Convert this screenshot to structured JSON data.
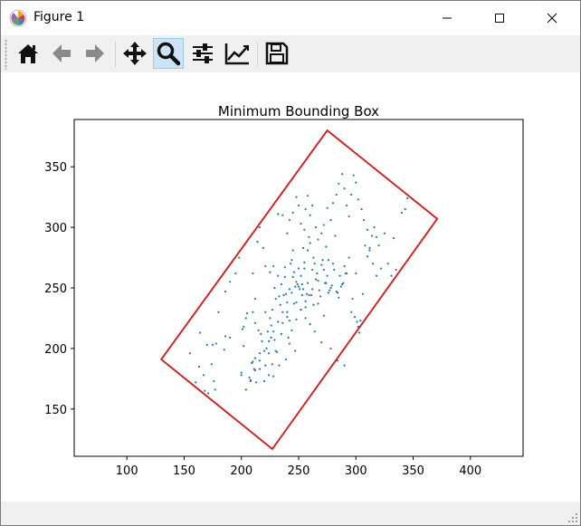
{
  "window": {
    "title": "Figure 1",
    "icon": "matplotlib-logo-icon"
  },
  "window_controls": [
    "minimize-icon",
    "maximize-icon",
    "close-icon"
  ],
  "toolbar": {
    "buttons": [
      {
        "name": "home",
        "icon": "home-icon",
        "active": false
      },
      {
        "name": "back",
        "icon": "arrow-left-icon",
        "active": false
      },
      {
        "name": "forward",
        "icon": "arrow-right-icon",
        "active": false
      },
      {
        "name": "pan",
        "icon": "move-icon",
        "active": false
      },
      {
        "name": "zoom",
        "icon": "zoom-icon",
        "active": true
      },
      {
        "name": "subplots",
        "icon": "sliders-icon",
        "active": false
      },
      {
        "name": "customize",
        "icon": "chart-line-icon",
        "active": false
      },
      {
        "name": "save",
        "icon": "floppy-disk-icon",
        "active": false
      }
    ]
  },
  "colors": {
    "points": "#1f77b4",
    "bounding_box": "#e01010",
    "accent_active": "#cce4f7"
  },
  "chart_data": {
    "type": "scatter",
    "title": "Minimum Bounding Box",
    "xlabel": "",
    "ylabel": "",
    "xlim": [
      54,
      446
    ],
    "ylim": [
      111,
      389
    ],
    "xticks": [
      100,
      150,
      200,
      250,
      300,
      350,
      400
    ],
    "yticks": [
      150,
      200,
      250,
      300,
      350
    ],
    "grid": false,
    "bounding_box": {
      "vertices": [
        [
          130,
          191
        ],
        [
          227,
          117
        ],
        [
          371,
          307
        ],
        [
          275,
          380
        ]
      ],
      "color": "#e01010"
    },
    "points": [
      [
        155,
        196
      ],
      [
        160,
        172
      ],
      [
        163,
        185
      ],
      [
        164,
        213
      ],
      [
        167,
        178
      ],
      [
        168,
        165
      ],
      [
        170,
        203
      ],
      [
        171,
        163
      ],
      [
        174,
        187
      ],
      [
        175,
        203
      ],
      [
        176,
        173
      ],
      [
        177,
        166
      ],
      [
        178,
        204
      ],
      [
        185,
        199
      ],
      [
        186,
        210
      ],
      [
        190,
        209
      ],
      [
        200,
        180
      ],
      [
        200,
        178
      ],
      [
        201,
        216
      ],
      [
        202,
        218
      ],
      [
        202,
        202
      ],
      [
        204,
        225
      ],
      [
        205,
        229
      ],
      [
        207,
        176
      ],
      [
        208,
        173
      ],
      [
        209,
        188
      ],
      [
        210,
        189
      ],
      [
        210,
        230
      ],
      [
        211,
        183
      ],
      [
        212,
        192
      ],
      [
        212,
        221
      ],
      [
        213,
        172
      ],
      [
        215,
        215
      ],
      [
        216,
        196
      ],
      [
        216,
        183
      ],
      [
        217,
        212
      ],
      [
        218,
        206
      ],
      [
        220,
        173
      ],
      [
        221,
        186
      ],
      [
        221,
        230
      ],
      [
        222,
        200
      ],
      [
        223,
        214
      ],
      [
        224,
        196
      ],
      [
        224,
        178
      ],
      [
        225,
        225
      ],
      [
        226,
        219
      ],
      [
        226,
        209
      ],
      [
        227,
        232
      ],
      [
        227,
        187
      ],
      [
        228,
        177
      ],
      [
        229,
        250
      ],
      [
        229,
        207
      ],
      [
        230,
        198
      ],
      [
        230,
        241
      ],
      [
        231,
        197
      ],
      [
        232,
        260
      ],
      [
        233,
        243
      ],
      [
        233,
        186
      ],
      [
        234,
        236
      ],
      [
        235,
        253
      ],
      [
        235,
        212
      ],
      [
        236,
        221
      ],
      [
        237,
        244
      ],
      [
        238,
        259
      ],
      [
        238,
        267
      ],
      [
        239,
        245
      ],
      [
        239,
        191
      ],
      [
        240,
        230
      ],
      [
        240,
        226
      ],
      [
        241,
        209
      ],
      [
        242,
        249
      ],
      [
        242,
        204
      ],
      [
        242,
        223
      ],
      [
        243,
        270
      ],
      [
        244,
        273
      ],
      [
        244,
        215
      ],
      [
        245,
        281
      ],
      [
        245,
        259
      ],
      [
        246,
        263
      ],
      [
        246,
        237
      ],
      [
        247,
        198
      ],
      [
        247,
        251
      ],
      [
        248,
        224
      ],
      [
        248,
        255
      ],
      [
        249,
        253
      ],
      [
        250,
        251
      ],
      [
        250,
        266
      ],
      [
        251,
        249
      ],
      [
        252,
        232
      ],
      [
        252,
        260
      ],
      [
        253,
        253
      ],
      [
        253,
        244
      ],
      [
        254,
        283
      ],
      [
        254,
        249
      ],
      [
        255,
        271
      ],
      [
        255,
        266
      ],
      [
        256,
        239
      ],
      [
        256,
        234
      ],
      [
        257,
        245
      ],
      [
        258,
        281
      ],
      [
        258,
        254
      ],
      [
        259,
        244
      ],
      [
        259,
        292
      ],
      [
        260,
        287
      ],
      [
        261,
        244
      ],
      [
        262,
        265
      ],
      [
        262,
        249
      ],
      [
        263,
        275
      ],
      [
        263,
        236
      ],
      [
        264,
        270
      ],
      [
        265,
        257
      ],
      [
        266,
        262
      ],
      [
        267,
        256
      ],
      [
        267,
        237
      ],
      [
        268,
        248
      ],
      [
        269,
        243
      ],
      [
        270,
        269
      ],
      [
        271,
        273
      ],
      [
        272,
        265
      ],
      [
        272,
        227
      ],
      [
        273,
        254
      ],
      [
        274,
        254
      ],
      [
        274,
        284
      ],
      [
        275,
        260
      ],
      [
        276,
        246
      ],
      [
        276,
        273
      ],
      [
        277,
        248
      ],
      [
        278,
        250
      ],
      [
        279,
        252
      ],
      [
        280,
        270
      ],
      [
        281,
        265
      ],
      [
        282,
        293
      ],
      [
        283,
        247
      ],
      [
        284,
        246
      ],
      [
        285,
        242
      ],
      [
        286,
        260
      ],
      [
        287,
        251
      ],
      [
        288,
        253
      ],
      [
        289,
        254
      ],
      [
        290,
        268
      ],
      [
        291,
        262
      ],
      [
        292,
        262
      ],
      [
        294,
        275
      ],
      [
        296,
        230
      ],
      [
        297,
        241
      ],
      [
        299,
        226
      ],
      [
        300,
        262
      ],
      [
        301,
        222
      ],
      [
        302,
        218
      ],
      [
        303,
        213
      ],
      [
        304,
        223
      ],
      [
        306,
        245
      ],
      [
        308,
        285
      ],
      [
        310,
        276
      ],
      [
        312,
        283
      ],
      [
        314,
        293
      ],
      [
        316,
        300
      ],
      [
        318,
        292
      ],
      [
        320,
        285
      ],
      [
        322,
        266
      ],
      [
        325,
        295
      ],
      [
        328,
        270
      ],
      [
        331,
        260
      ],
      [
        333,
        291
      ],
      [
        335,
        265
      ],
      [
        340,
        312
      ],
      [
        343,
        315
      ],
      [
        345,
        324
      ],
      [
        180,
        230
      ],
      [
        186,
        247
      ],
      [
        190,
        255
      ],
      [
        195,
        262
      ],
      [
        198,
        275
      ],
      [
        210,
        262
      ],
      [
        212,
        241
      ],
      [
        214,
        288
      ],
      [
        216,
        300
      ],
      [
        219,
        283
      ],
      [
        221,
        268
      ],
      [
        225,
        263
      ],
      [
        228,
        268
      ],
      [
        232,
        311
      ],
      [
        236,
        310
      ],
      [
        240,
        295
      ],
      [
        242,
        306
      ],
      [
        245,
        312
      ],
      [
        248,
        325
      ],
      [
        250,
        318
      ],
      [
        252,
        303
      ],
      [
        255,
        298
      ],
      [
        256,
        315
      ],
      [
        258,
        326
      ],
      [
        260,
        310
      ],
      [
        262,
        318
      ],
      [
        265,
        300
      ],
      [
        267,
        290
      ],
      [
        270,
        295
      ],
      [
        272,
        302
      ],
      [
        275,
        316
      ],
      [
        278,
        306
      ],
      [
        280,
        320
      ],
      [
        283,
        327
      ],
      [
        285,
        336
      ],
      [
        288,
        344
      ],
      [
        290,
        332
      ],
      [
        292,
        318
      ],
      [
        294,
        309
      ],
      [
        296,
        327
      ],
      [
        298,
        343
      ],
      [
        300,
        337
      ],
      [
        302,
        323
      ],
      [
        305,
        315
      ],
      [
        307,
        306
      ],
      [
        310,
        298
      ],
      [
        312,
        281
      ],
      [
        315,
        270
      ],
      [
        318,
        260
      ],
      [
        290,
        186
      ],
      [
        284,
        190
      ],
      [
        278,
        200
      ],
      [
        270,
        205
      ],
      [
        264,
        214
      ],
      [
        260,
        220
      ],
      [
        256,
        225
      ],
      [
        252,
        232
      ],
      [
        248,
        238
      ],
      [
        244,
        246
      ],
      [
        240,
        238
      ],
      [
        236,
        230
      ],
      [
        232,
        222
      ],
      [
        228,
        214
      ],
      [
        224,
        206
      ],
      [
        220,
        198
      ],
      [
        216,
        190
      ],
      [
        212,
        182
      ],
      [
        208,
        174
      ],
      [
        204,
        166
      ]
    ]
  }
}
